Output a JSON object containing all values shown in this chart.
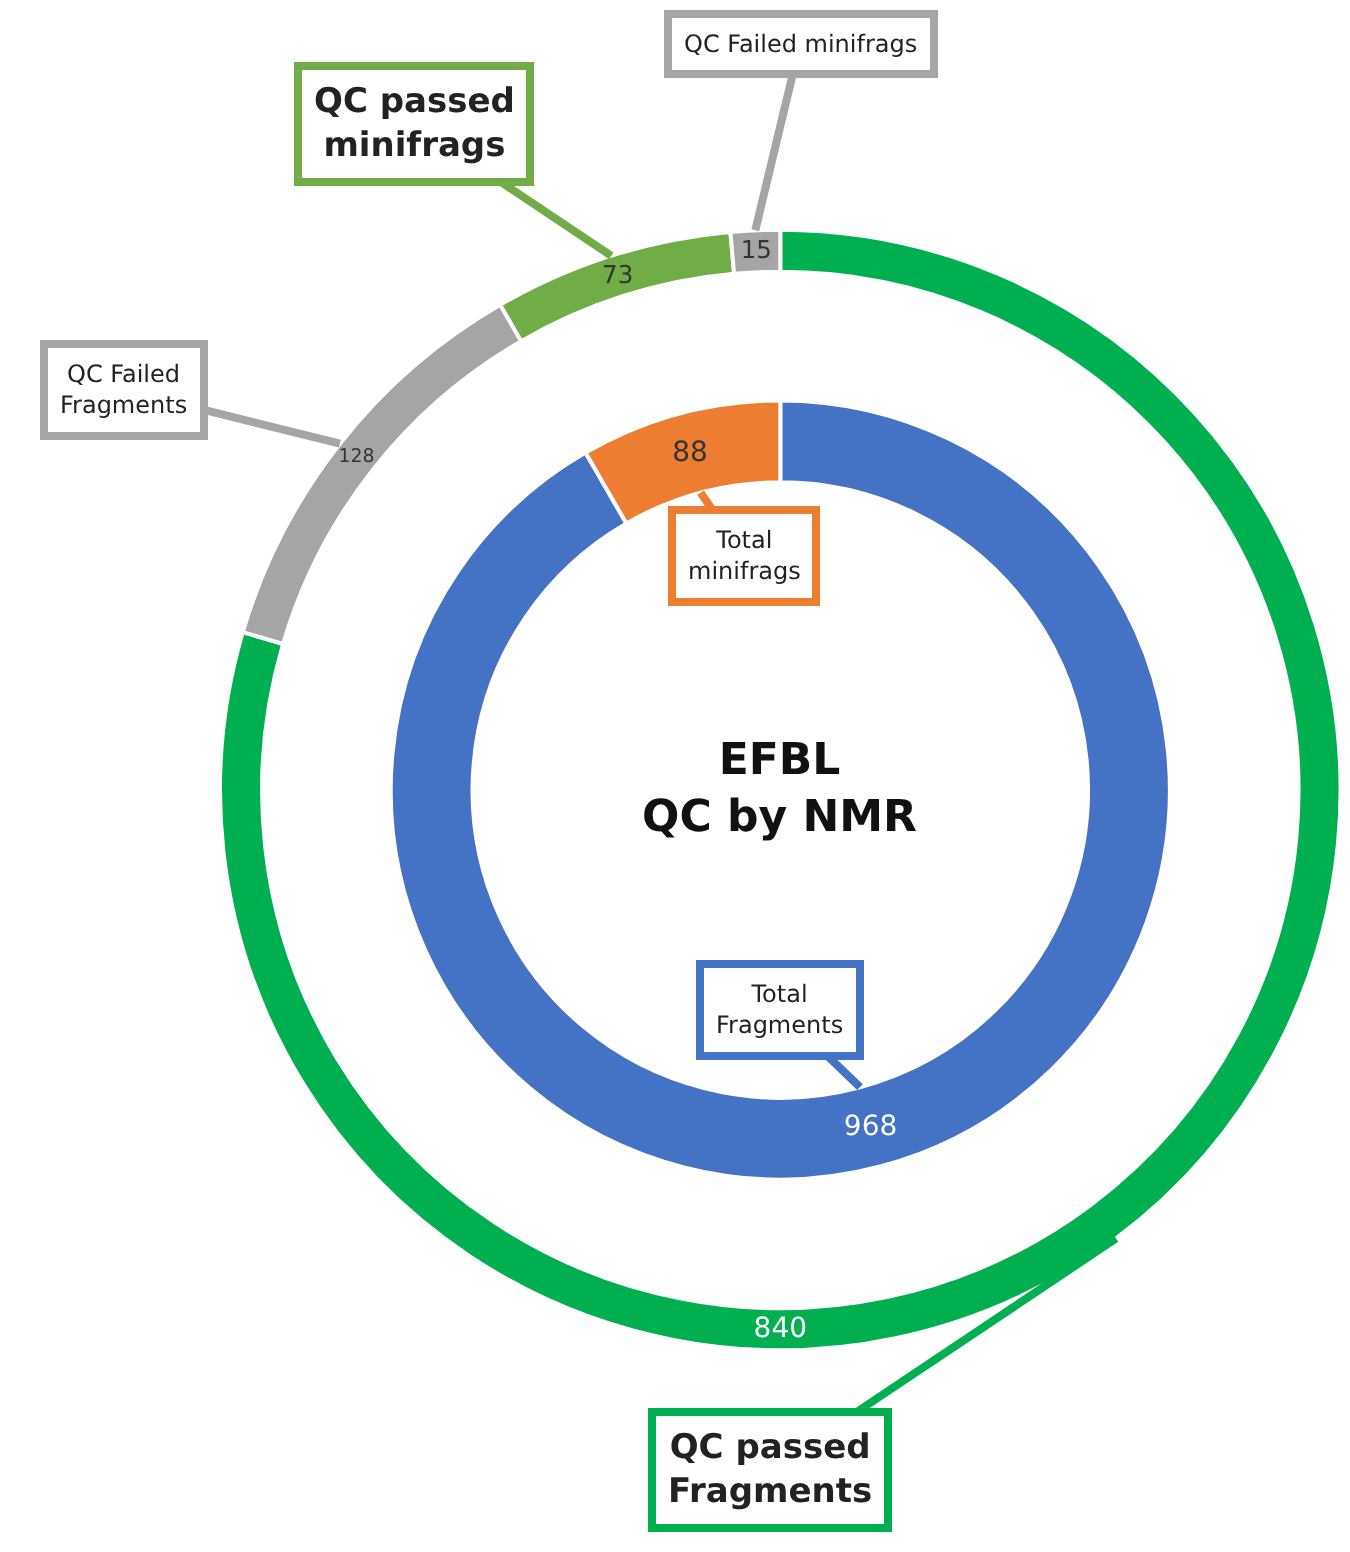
{
  "chart_data": [
    {
      "type": "donut",
      "categories": [
        "QC passed Fragments",
        "QC Failed Fragments",
        "QC passed minifrags",
        "QC Failed minifrags"
      ],
      "values": [
        840,
        128,
        73,
        15
      ],
      "colors": [
        "#00b050",
        "#a5a5a5",
        "#70ad47",
        "#a5a5a5"
      ],
      "data_labels": true
    },
    {
      "type": "donut",
      "title": "EFBL\nQC by NMR",
      "categories": [
        "Total Fragments",
        "Total minifrags"
      ],
      "values": [
        968,
        88
      ],
      "colors": [
        "#4472c4",
        "#ed7d31"
      ],
      "data_labels": true
    }
  ]
}
